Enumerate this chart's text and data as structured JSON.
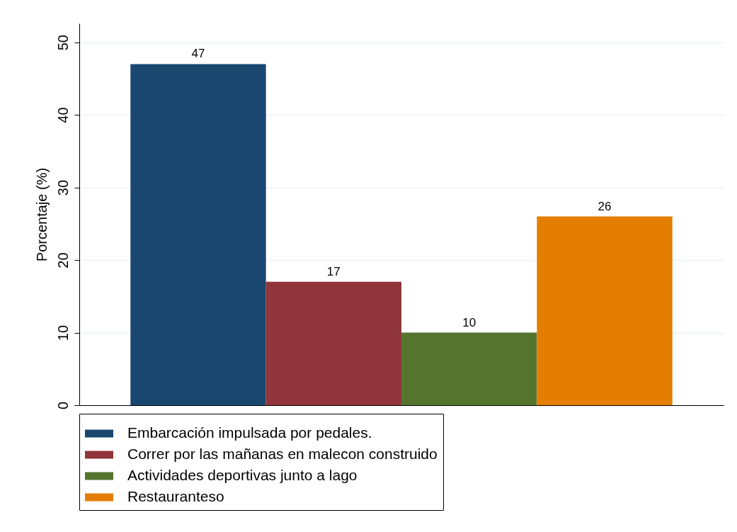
{
  "chart_data": {
    "type": "bar",
    "ylabel": "Porcentaje (%)",
    "categories": [
      null
    ],
    "series": [
      {
        "name": "Embarcación impulsada por pedales.",
        "color": "#1a476f",
        "values": [
          47
        ]
      },
      {
        "name": "Correr por las mañanas en malecon construido",
        "color": "#90353b",
        "values": [
          17
        ]
      },
      {
        "name": "Actividades deportivas junto a lago",
        "color": "#55752f",
        "values": [
          10
        ]
      },
      {
        "name": "Restauranteso",
        "color": "#e37e00",
        "values": [
          26
        ]
      }
    ],
    "ylim": [
      0,
      52.6
    ],
    "yticks": [
      0,
      10,
      20,
      30,
      40,
      50
    ],
    "grid": "y",
    "legend": "bottom",
    "data_labels": true,
    "tick_labels": "y"
  }
}
